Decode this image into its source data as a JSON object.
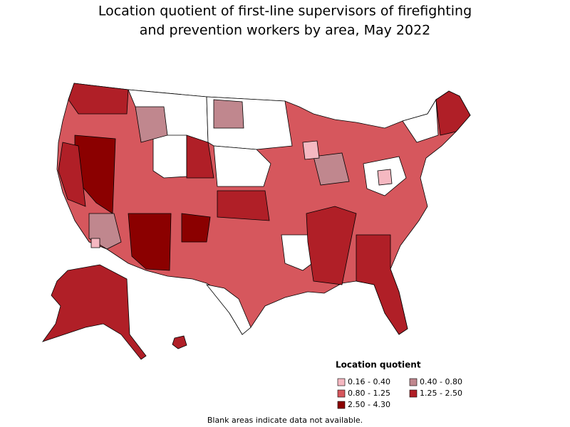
{
  "title": [
    "Location quotient of first-line supervisors of firefighting",
    "and prevention workers by area, May 2022"
  ],
  "legend": {
    "title": "Location quotient",
    "items": [
      {
        "label": "0.16 - 0.40",
        "color": "#f5b8c1"
      },
      {
        "label": "0.40 - 0.80",
        "color": "#c0878e"
      },
      {
        "label": "0.80 - 1.25",
        "color": "#d6575d"
      },
      {
        "label": "1.25 - 2.50",
        "color": "#b01f27"
      },
      {
        "label": "2.50 - 4.30",
        "color": "#8b0000"
      }
    ]
  },
  "note": "Blank areas indicate data not available."
}
